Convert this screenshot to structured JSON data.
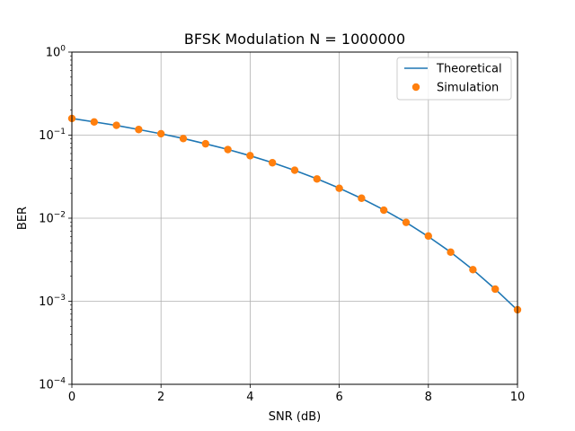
{
  "chart_data": {
    "type": "line",
    "title": "BFSK Modulation N = 1000000",
    "xlabel": "SNR (dB)",
    "ylabel": "BER",
    "xlim": [
      0,
      10
    ],
    "ylim": [
      0.0001,
      1
    ],
    "yscale": "log",
    "grid": true,
    "legend_position": "top-right",
    "x_ticks": [
      "0",
      "2",
      "4",
      "6",
      "8",
      "10"
    ],
    "x_tick_values": [
      0,
      2,
      4,
      6,
      8,
      10
    ],
    "y_tick_exponents": [
      -4,
      -3,
      -2,
      -1,
      0
    ],
    "y_tick_base": "10",
    "x": [
      0,
      0.5,
      1,
      1.5,
      2,
      2.5,
      3,
      3.5,
      4,
      4.5,
      5,
      5.5,
      6,
      6.5,
      7,
      7.5,
      8,
      8.5,
      9,
      9.5,
      10
    ],
    "series": [
      {
        "name": "Theoretical",
        "style": "line",
        "color": "#1f77b4",
        "values": [
          0.1587,
          0.1444,
          0.1309,
          0.1169,
          0.1038,
          0.0912,
          0.0786,
          0.0673,
          0.0565,
          0.0466,
          0.0377,
          0.0298,
          0.023,
          0.0173,
          0.0126,
          0.0089,
          0.006,
          0.0039,
          0.0024,
          0.0014,
          0.00078
        ]
      },
      {
        "name": "Simulation",
        "style": "markers",
        "color": "#ff7f0e",
        "values": [
          0.1588,
          0.1442,
          0.1312,
          0.1168,
          0.104,
          0.091,
          0.0787,
          0.0671,
          0.0566,
          0.0465,
          0.0378,
          0.0297,
          0.0229,
          0.0174,
          0.0125,
          0.0089,
          0.0061,
          0.0039,
          0.0024,
          0.0014,
          0.00079
        ]
      }
    ]
  }
}
